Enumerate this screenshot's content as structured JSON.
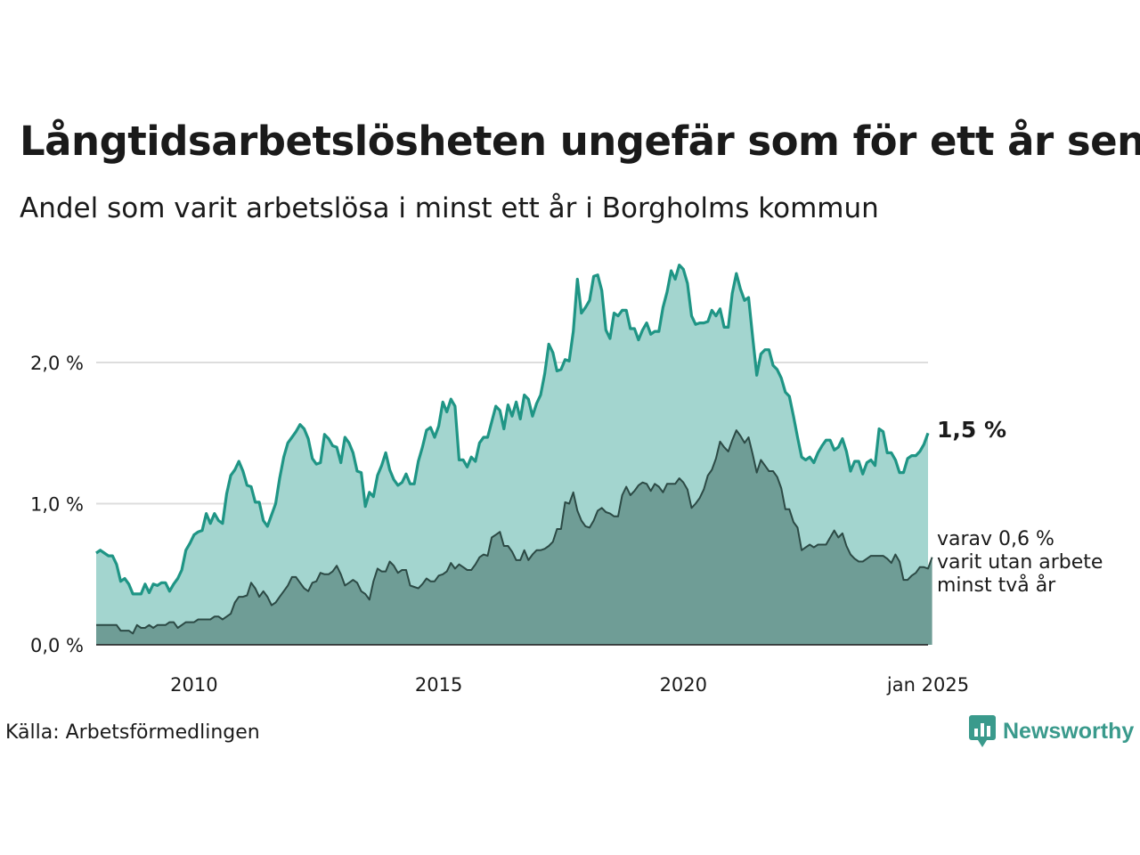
{
  "title": "Långtidsarbetslösheten ungefär som för ett år sen",
  "subtitle": "Andel som varit arbetslösa i minst ett år i Borgholms kommun",
  "source": "Källa: Arbetsförmedlingen",
  "logo": {
    "name": "Newsworthy",
    "icon": "bar-chart-speech-icon"
  },
  "annotations": {
    "latest_total": "1,5 %",
    "latest_sub_line1": "varav 0,6 %",
    "latest_sub_line2": "varit utan arbete",
    "latest_sub_line3": "minst två år"
  },
  "colors": {
    "total_fill": "#a3d5cf",
    "total_line": "#1f9585",
    "sub_fill": "#6f9d96",
    "sub_line": "#2c4a45",
    "grid": "#dddddd"
  },
  "chart_data": {
    "type": "area",
    "x_start": "2008-01",
    "x_end": "2025-01",
    "x_ticks": [
      {
        "date": "2010-01",
        "label": "2010"
      },
      {
        "date": "2015-01",
        "label": "2015"
      },
      {
        "date": "2020-01",
        "label": "2020"
      },
      {
        "date": "2025-01",
        "label": "jan 2025"
      }
    ],
    "y_ticks": [
      {
        "value": 0.0,
        "label": "0,0 %"
      },
      {
        "value": 1.0,
        "label": "1,0 %"
      },
      {
        "value": 2.0,
        "label": "2,0 %"
      }
    ],
    "ylim": [
      0,
      2.7
    ],
    "grid": true,
    "series": [
      {
        "values": [
          0.65,
          0.67,
          0.65,
          0.63,
          0.63,
          0.57,
          0.45,
          0.47,
          0.43,
          0.36,
          0.36,
          0.36,
          0.43,
          0.37,
          0.43,
          0.42,
          0.44,
          0.44,
          0.38,
          0.43,
          0.47,
          0.53,
          0.67,
          0.72,
          0.78,
          0.8,
          0.81,
          0.93,
          0.86,
          0.93,
          0.88,
          0.86,
          1.07,
          1.2,
          1.24,
          1.3,
          1.23,
          1.13,
          1.12,
          1.01,
          1.01,
          0.88,
          0.84,
          0.92,
          1.0,
          1.18,
          1.33,
          1.43,
          1.47,
          1.51,
          1.56,
          1.53,
          1.46,
          1.32,
          1.28,
          1.29,
          1.49,
          1.46,
          1.41,
          1.4,
          1.29,
          1.47,
          1.43,
          1.36,
          1.23,
          1.22,
          0.98,
          1.08,
          1.05,
          1.2,
          1.27,
          1.36,
          1.24,
          1.17,
          1.13,
          1.15,
          1.21,
          1.14,
          1.14,
          1.3,
          1.4,
          1.52,
          1.54,
          1.47,
          1.55,
          1.72,
          1.65,
          1.74,
          1.69,
          1.31,
          1.31,
          1.26,
          1.33,
          1.3,
          1.43,
          1.47,
          1.47,
          1.58,
          1.69,
          1.66,
          1.53,
          1.7,
          1.62,
          1.72,
          1.6,
          1.77,
          1.74,
          1.62,
          1.71,
          1.77,
          1.92,
          2.13,
          2.07,
          1.94,
          1.95,
          2.02,
          2.01,
          2.22,
          2.59,
          2.35,
          2.39,
          2.44,
          2.61,
          2.62,
          2.51,
          2.23,
          2.17,
          2.35,
          2.33,
          2.37,
          2.37,
          2.24,
          2.24,
          2.16,
          2.23,
          2.28,
          2.2,
          2.22,
          2.22,
          2.39,
          2.5,
          2.65,
          2.59,
          2.69,
          2.66,
          2.56,
          2.33,
          2.27,
          2.28,
          2.28,
          2.29,
          2.37,
          2.33,
          2.38,
          2.25,
          2.25,
          2.49,
          2.63,
          2.52,
          2.44,
          2.46,
          2.18,
          1.91,
          2.06,
          2.09,
          2.09,
          1.98,
          1.95,
          1.89,
          1.79,
          1.76,
          1.62,
          1.47,
          1.33,
          1.31,
          1.33,
          1.29,
          1.36,
          1.41,
          1.45,
          1.45,
          1.38,
          1.4,
          1.46,
          1.37,
          1.23,
          1.3,
          1.3,
          1.21,
          1.29,
          1.31,
          1.27,
          1.53,
          1.51,
          1.36,
          1.36,
          1.31,
          1.22,
          1.22,
          1.32,
          1.34,
          1.34,
          1.37,
          1.42,
          1.5
        ]
      },
      {
        "values": [
          0.14,
          0.14,
          0.14,
          0.14,
          0.14,
          0.14,
          0.1,
          0.1,
          0.1,
          0.08,
          0.14,
          0.12,
          0.12,
          0.14,
          0.12,
          0.14,
          0.14,
          0.14,
          0.16,
          0.16,
          0.12,
          0.14,
          0.16,
          0.16,
          0.16,
          0.18,
          0.18,
          0.18,
          0.18,
          0.2,
          0.2,
          0.18,
          0.2,
          0.22,
          0.3,
          0.34,
          0.34,
          0.35,
          0.44,
          0.4,
          0.34,
          0.38,
          0.34,
          0.28,
          0.3,
          0.34,
          0.38,
          0.42,
          0.48,
          0.48,
          0.44,
          0.4,
          0.38,
          0.44,
          0.45,
          0.51,
          0.5,
          0.5,
          0.52,
          0.56,
          0.5,
          0.42,
          0.44,
          0.46,
          0.44,
          0.38,
          0.36,
          0.32,
          0.45,
          0.54,
          0.52,
          0.52,
          0.59,
          0.56,
          0.51,
          0.53,
          0.53,
          0.42,
          0.41,
          0.4,
          0.43,
          0.47,
          0.45,
          0.45,
          0.49,
          0.5,
          0.52,
          0.58,
          0.54,
          0.57,
          0.55,
          0.53,
          0.53,
          0.57,
          0.62,
          0.64,
          0.63,
          0.76,
          0.78,
          0.8,
          0.7,
          0.7,
          0.66,
          0.6,
          0.6,
          0.67,
          0.6,
          0.64,
          0.67,
          0.67,
          0.68,
          0.7,
          0.73,
          0.82,
          0.82,
          1.01,
          1.0,
          1.08,
          0.95,
          0.88,
          0.84,
          0.83,
          0.88,
          0.95,
          0.97,
          0.94,
          0.93,
          0.91,
          0.91,
          1.06,
          1.12,
          1.06,
          1.09,
          1.13,
          1.15,
          1.14,
          1.09,
          1.14,
          1.12,
          1.08,
          1.14,
          1.14,
          1.14,
          1.18,
          1.15,
          1.1,
          0.97,
          1.0,
          1.04,
          1.1,
          1.2,
          1.24,
          1.32,
          1.44,
          1.4,
          1.37,
          1.45,
          1.52,
          1.48,
          1.43,
          1.47,
          1.35,
          1.22,
          1.31,
          1.27,
          1.23,
          1.23,
          1.19,
          1.11,
          0.96,
          0.96,
          0.87,
          0.83,
          0.67,
          0.69,
          0.71,
          0.69,
          0.71,
          0.71,
          0.71,
          0.76,
          0.81,
          0.76,
          0.79,
          0.7,
          0.64,
          0.61,
          0.59,
          0.59,
          0.61,
          0.63,
          0.63,
          0.63,
          0.63,
          0.61,
          0.58,
          0.64,
          0.59,
          0.46,
          0.46,
          0.49,
          0.51,
          0.55,
          0.55,
          0.54,
          0.62
        ]
      }
    ]
  }
}
